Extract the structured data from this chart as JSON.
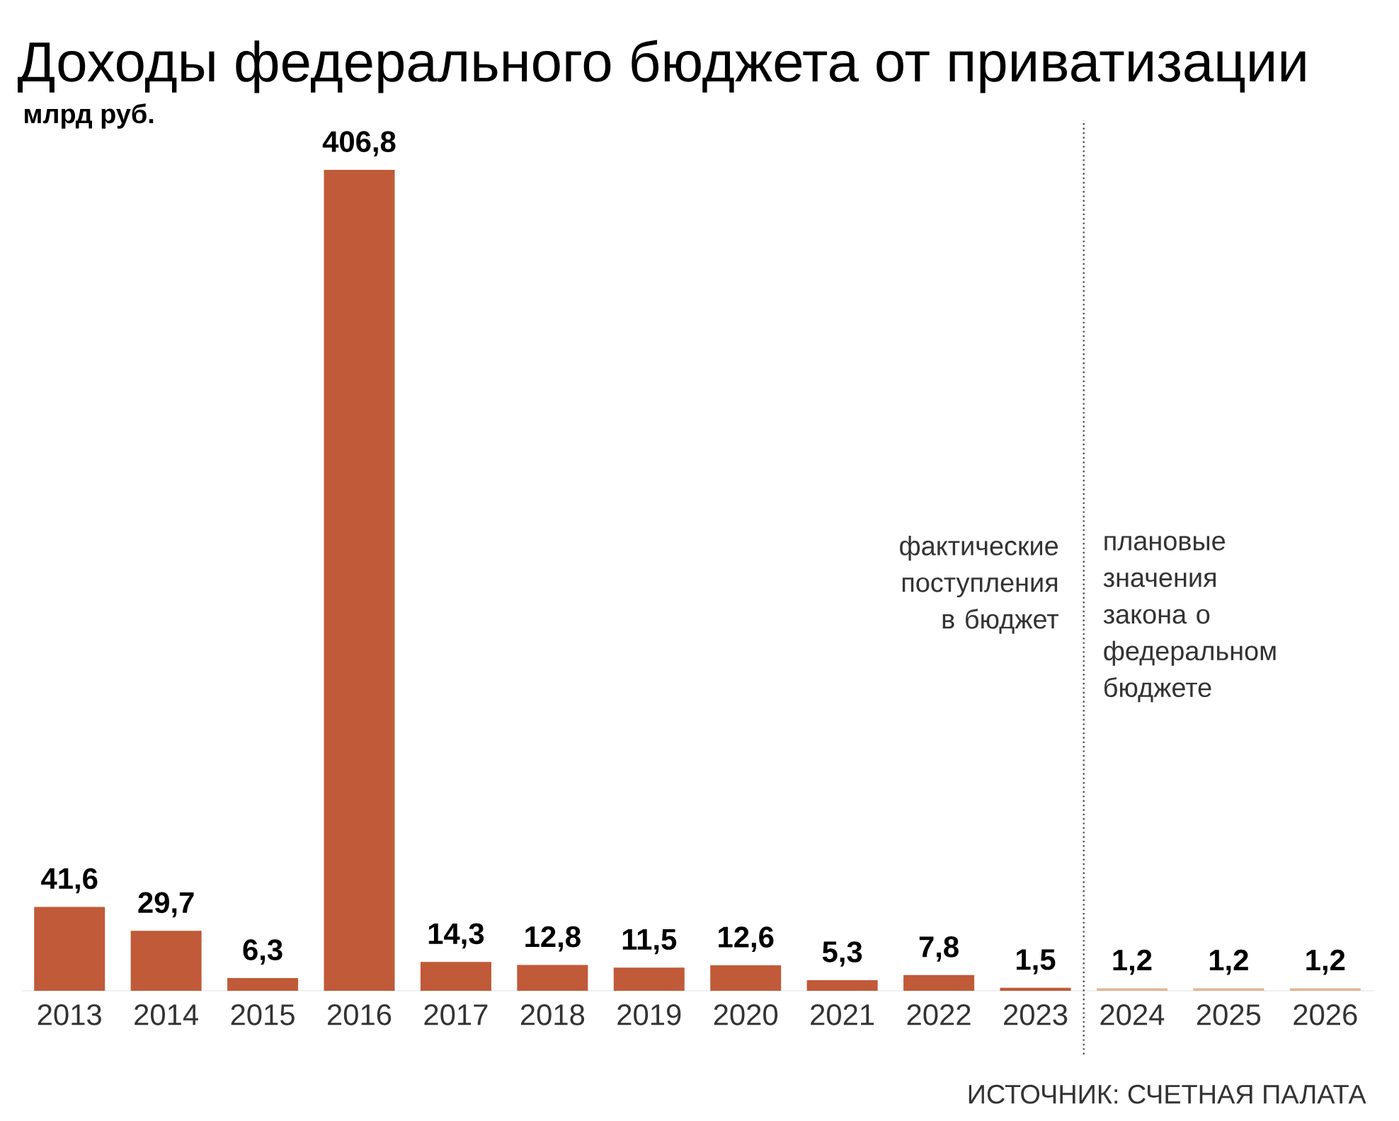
{
  "chart_data": {
    "type": "bar",
    "title": "Доходы федерального бюджета от приватизации",
    "subtitle": "млрд руб.",
    "x": [
      2013,
      2014,
      2015,
      2016,
      2017,
      2018,
      2019,
      2020,
      2021,
      2022,
      2023,
      2024,
      2025,
      2026
    ],
    "values": [
      41.6,
      29.7,
      6.3,
      406.8,
      14.3,
      12.8,
      11.5,
      12.6,
      5.3,
      7.8,
      1.5,
      1.2,
      1.2,
      1.2
    ],
    "value_labels": [
      "41,6",
      "29,7",
      "6,3",
      "406,8",
      "14,3",
      "12,8",
      "11,5",
      "12,6",
      "5,3",
      "7,8",
      "1,5",
      "1,2",
      "1,2",
      "1,2"
    ],
    "colors": [
      "#c05a38",
      "#c05a38",
      "#c05a38",
      "#c05a38",
      "#c05a38",
      "#c05a38",
      "#c05a38",
      "#c05a38",
      "#c05a38",
      "#c05a38",
      "#c05a38",
      "#e2b593",
      "#e2b593",
      "#e2b593"
    ],
    "xticks": [
      2013,
      2014,
      2015,
      2016,
      2017,
      2018,
      2019,
      2020,
      2021,
      2022,
      2023,
      2024,
      2025,
      2026
    ],
    "xlim": [
      2012.5,
      2026.5
    ],
    "ref_lines": [
      {
        "axis": "x",
        "value": 2023.5,
        "color": "#555555",
        "line_style": "dotted"
      }
    ],
    "annotations": [
      "фактические поступления в бюджет",
      "плановые значения закона о федеральном бюджете",
      "ИСТОЧНИК: СЧЕТНАЯ ПАЛАТА"
    ],
    "grid": false
  }
}
